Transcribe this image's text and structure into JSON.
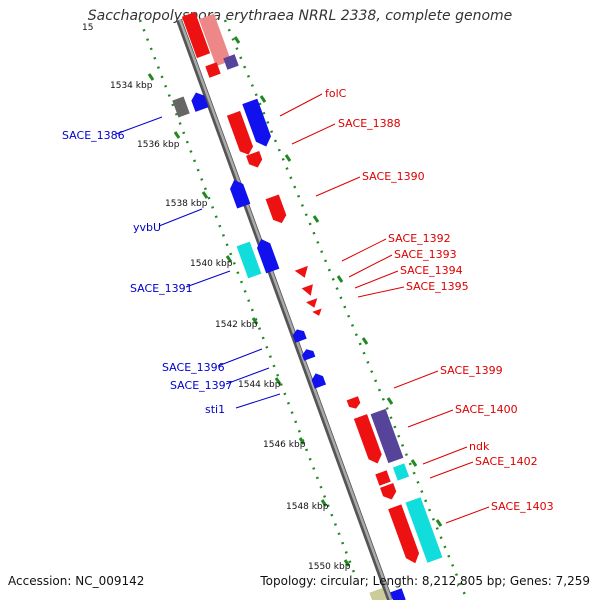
{
  "header": {
    "title": "Saccharopolyspora erythraea NRRL 2338, complete genome"
  },
  "footer": {
    "accession": "Accession: NC_009142",
    "summary": "Topology: circular; Length: 8,212,805 bp; Genes: 7,259"
  },
  "colors": {
    "red_gene": "#ee1111",
    "blue_gene": "#1111ee",
    "cyan_gene": "#11dddd",
    "purple_gene": "#554499",
    "gray_gene": "#666666",
    "backbone": "#888888",
    "tick_dots": "#228822",
    "red_label": "#dd0000",
    "blue_label": "#0000cc"
  },
  "scale_labels": [
    "1534 kbp",
    "1536 kbp",
    "1538 kbp",
    "1540 kbp",
    "1542 kbp",
    "1544 kbp",
    "1546 kbp",
    "1548 kbp",
    "1550 kbp"
  ],
  "top_partial_label": "15",
  "genes_right": [
    "folC",
    "SACE_1388",
    "SACE_1390",
    "SACE_1392",
    "SACE_1393",
    "SACE_1394",
    "SACE_1395",
    "SACE_1399",
    "SACE_1400",
    "ndk",
    "SACE_1402",
    "SACE_1403"
  ],
  "genes_left": [
    "SACE_1386",
    "yvbU",
    "SACE_1391",
    "SACE_1396",
    "SACE_1397",
    "sti1"
  ]
}
